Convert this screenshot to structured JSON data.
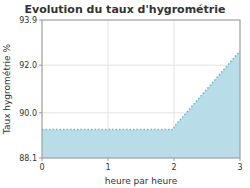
{
  "chart_data": {
    "type": "area",
    "title": "Evolution du taux d'hygrométrie",
    "xlabel": "heure par heure",
    "ylabel": "Taux hygrométrie %",
    "x": [
      0,
      2,
      2,
      3
    ],
    "series": [
      {
        "values": [
          89.3,
          89.3,
          89.4,
          92.6
        ],
        "color": "#66bbcc",
        "line_style": "dotted"
      }
    ],
    "color": "#b8dce8",
    "xlim": [
      0,
      3
    ],
    "ylim": [
      88.1,
      93.9
    ],
    "xticks": [
      0,
      1,
      2,
      3
    ],
    "yticks": [
      88.1,
      {
        "value": 90,
        "label": "90.0"
      },
      {
        "value": 92,
        "label": "92.0"
      },
      93.9
    ],
    "grid": true
  }
}
